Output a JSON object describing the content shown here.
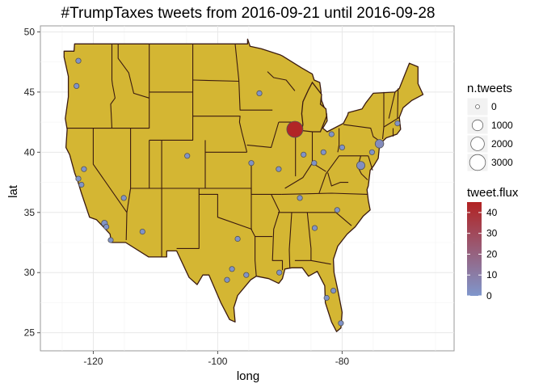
{
  "chart_data": {
    "type": "scatter",
    "title": "#TrumpTaxes tweets from 2016-09-21 until 2016-09-28",
    "xlabel": "long",
    "ylabel": "lat",
    "xlim": [
      -128.5,
      -62
    ],
    "ylim": [
      23.5,
      50.5
    ],
    "xticks": [
      -120,
      -100,
      -80
    ],
    "yticks": [
      25,
      30,
      35,
      40,
      45,
      50
    ],
    "grid": true,
    "map_fill": "#d4b633",
    "map_border": "#3a1a10",
    "points": [
      {
        "x": -87.6,
        "y": 41.9,
        "n": 3200,
        "flux": 44
      },
      {
        "x": -74.0,
        "y": 40.7,
        "n": 450,
        "flux": 4
      },
      {
        "x": -77.0,
        "y": 38.9,
        "n": 380,
        "flux": 3
      },
      {
        "x": -122.7,
        "y": 45.5,
        "n": 30,
        "flux": 1
      },
      {
        "x": -122.4,
        "y": 47.6,
        "n": 30,
        "flux": 1
      },
      {
        "x": -122.4,
        "y": 37.8,
        "n": 30,
        "flux": 1
      },
      {
        "x": -121.9,
        "y": 37.3,
        "n": 30,
        "flux": 1
      },
      {
        "x": -121.5,
        "y": 38.6,
        "n": 30,
        "flux": 1
      },
      {
        "x": -118.2,
        "y": 34.1,
        "n": 80,
        "flux": 1
      },
      {
        "x": -117.9,
        "y": 33.8,
        "n": 30,
        "flux": 1
      },
      {
        "x": -117.2,
        "y": 32.7,
        "n": 30,
        "flux": 1
      },
      {
        "x": -115.1,
        "y": 36.2,
        "n": 30,
        "flux": 1
      },
      {
        "x": -112.1,
        "y": 33.4,
        "n": 30,
        "flux": 1
      },
      {
        "x": -104.9,
        "y": 39.7,
        "n": 30,
        "flux": 1
      },
      {
        "x": -93.3,
        "y": 44.9,
        "n": 30,
        "flux": 1
      },
      {
        "x": -96.8,
        "y": 32.8,
        "n": 30,
        "flux": 1
      },
      {
        "x": -97.7,
        "y": 30.3,
        "n": 30,
        "flux": 1
      },
      {
        "x": -95.4,
        "y": 29.8,
        "n": 30,
        "flux": 1
      },
      {
        "x": -98.5,
        "y": 29.4,
        "n": 30,
        "flux": 1
      },
      {
        "x": -94.6,
        "y": 39.1,
        "n": 30,
        "flux": 1
      },
      {
        "x": -90.2,
        "y": 38.6,
        "n": 30,
        "flux": 1
      },
      {
        "x": -90.1,
        "y": 30.0,
        "n": 30,
        "flux": 1
      },
      {
        "x": -86.8,
        "y": 36.2,
        "n": 30,
        "flux": 1
      },
      {
        "x": -84.4,
        "y": 33.7,
        "n": 30,
        "flux": 1
      },
      {
        "x": -84.5,
        "y": 39.1,
        "n": 30,
        "flux": 1
      },
      {
        "x": -83.0,
        "y": 40.0,
        "n": 30,
        "flux": 1
      },
      {
        "x": -86.2,
        "y": 39.8,
        "n": 30,
        "flux": 1
      },
      {
        "x": -81.7,
        "y": 41.5,
        "n": 30,
        "flux": 1
      },
      {
        "x": -80.8,
        "y": 35.2,
        "n": 30,
        "flux": 1
      },
      {
        "x": -80.0,
        "y": 40.4,
        "n": 30,
        "flux": 1
      },
      {
        "x": -75.2,
        "y": 40.0,
        "n": 30,
        "flux": 1
      },
      {
        "x": -71.1,
        "y": 42.4,
        "n": 30,
        "flux": 1
      },
      {
        "x": -81.4,
        "y": 28.5,
        "n": 30,
        "flux": 1
      },
      {
        "x": -82.5,
        "y": 27.9,
        "n": 30,
        "flux": 1
      },
      {
        "x": -80.2,
        "y": 25.8,
        "n": 30,
        "flux": 1
      }
    ],
    "legend_size": {
      "title": "n.tweets",
      "breaks": [
        0,
        1000,
        2000,
        3000
      ],
      "labels": [
        "0",
        "1000",
        "2000",
        "3000"
      ]
    },
    "legend_color": {
      "title": "tweet.flux",
      "range": [
        0,
        45
      ],
      "breaks": [
        0,
        10,
        20,
        30,
        40
      ],
      "labels": [
        "0",
        "10",
        "20",
        "30",
        "40"
      ],
      "low_color": "#7f96cc",
      "high_color": "#b22222"
    }
  }
}
